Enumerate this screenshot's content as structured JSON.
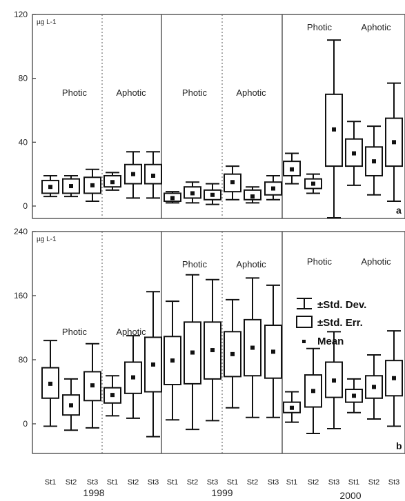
{
  "legend": {
    "sd": "±Std. Dev.",
    "se": "±Std. Err.",
    "mean": "Mean"
  },
  "x_labels": [
    "St1",
    "St2",
    "St3",
    "St1",
    "St2",
    "St3",
    "St1",
    "St2",
    "St3",
    "St1",
    "St2",
    "St3",
    "St1",
    "St2",
    "St3",
    "St1",
    "St2",
    "St3"
  ],
  "years": [
    "1998",
    "1999",
    "2000"
  ],
  "chart_data": [
    {
      "type": "box",
      "panel_letter": "a",
      "unit_label": "µg L-1",
      "ylim": [
        0,
        120
      ],
      "yticks": [
        "0",
        "40",
        "80",
        "120"
      ],
      "zone_labels": [
        "Photic",
        "Aphotic",
        "Photic",
        "Aphotic",
        "Photic",
        "Aphotic"
      ],
      "groups": [
        {
          "year": "1998",
          "zone": "Photic",
          "station": "St1",
          "mean": 12,
          "se_low": 8,
          "se_high": 16,
          "sd_low": 6,
          "sd_high": 19
        },
        {
          "year": "1998",
          "zone": "Photic",
          "station": "St2",
          "mean": 12.5,
          "se_low": 8,
          "se_high": 17,
          "sd_low": 6,
          "sd_high": 19
        },
        {
          "year": "1998",
          "zone": "Photic",
          "station": "St3",
          "mean": 13,
          "se_low": 8,
          "se_high": 18,
          "sd_low": 3,
          "sd_high": 23
        },
        {
          "year": "1998",
          "zone": "Aphotic",
          "station": "St1",
          "mean": 15,
          "se_low": 12,
          "se_high": 19,
          "sd_low": 10,
          "sd_high": 21
        },
        {
          "year": "1998",
          "zone": "Aphotic",
          "station": "St2",
          "mean": 20,
          "se_low": 14,
          "se_high": 26,
          "sd_low": 5,
          "sd_high": 34
        },
        {
          "year": "1998",
          "zone": "Aphotic",
          "station": "St3",
          "mean": 19,
          "se_low": 14,
          "se_high": 26,
          "sd_low": 5,
          "sd_high": 34
        },
        {
          "year": "1999",
          "zone": "Photic",
          "station": "St1",
          "mean": 5,
          "se_low": 3,
          "se_high": 8,
          "sd_low": 2,
          "sd_high": 9
        },
        {
          "year": "1999",
          "zone": "Photic",
          "station": "St2",
          "mean": 8,
          "se_low": 5,
          "se_high": 12,
          "sd_low": 2,
          "sd_high": 15
        },
        {
          "year": "1999",
          "zone": "Photic",
          "station": "St3",
          "mean": 7,
          "se_low": 4,
          "se_high": 10,
          "sd_low": 1,
          "sd_high": 14
        },
        {
          "year": "1999",
          "zone": "Aphotic",
          "station": "St1",
          "mean": 15,
          "se_low": 9,
          "se_high": 20,
          "sd_low": 4,
          "sd_high": 25
        },
        {
          "year": "1999",
          "zone": "Aphotic",
          "station": "St2",
          "mean": 6,
          "se_low": 4,
          "se_high": 10,
          "sd_low": 2,
          "sd_high": 12
        },
        {
          "year": "1999",
          "zone": "Aphotic",
          "station": "St3",
          "mean": 11,
          "se_low": 7,
          "se_high": 15,
          "sd_low": 4,
          "sd_high": 19
        },
        {
          "year": "2000",
          "zone": "Photic",
          "station": "St1",
          "mean": 23,
          "se_low": 19,
          "se_high": 28,
          "sd_low": 14,
          "sd_high": 33
        },
        {
          "year": "2000",
          "zone": "Photic",
          "station": "St2",
          "mean": 14,
          "se_low": 11,
          "se_high": 17,
          "sd_low": 8,
          "sd_high": 20
        },
        {
          "year": "2000",
          "zone": "Photic",
          "station": "St3",
          "mean": 48,
          "se_low": 25,
          "se_high": 70,
          "sd_low": -8,
          "sd_high": 104
        },
        {
          "year": "2000",
          "zone": "Aphotic",
          "station": "St1",
          "mean": 33,
          "se_low": 25,
          "se_high": 42,
          "sd_low": 13,
          "sd_high": 53
        },
        {
          "year": "2000",
          "zone": "Aphotic",
          "station": "St2",
          "mean": 28,
          "se_low": 19,
          "se_high": 37,
          "sd_low": 7,
          "sd_high": 50
        },
        {
          "year": "2000",
          "zone": "Aphotic",
          "station": "St3",
          "mean": 40,
          "se_low": 25,
          "se_high": 55,
          "sd_low": 3,
          "sd_high": 77
        }
      ]
    },
    {
      "type": "box",
      "panel_letter": "b",
      "unit_label": "µg L-1",
      "ylim": [
        0,
        240
      ],
      "yticks": [
        "0",
        "80",
        "160",
        "240"
      ],
      "zone_labels": [
        "Photic",
        "Aphotic",
        "Photic",
        "Aphotic",
        "Photic",
        "Aphotic"
      ],
      "groups": [
        {
          "year": "1998",
          "zone": "Photic",
          "station": "St1",
          "mean": 50,
          "se_low": 32,
          "se_high": 70,
          "sd_low": -3,
          "sd_high": 104
        },
        {
          "year": "1998",
          "zone": "Photic",
          "station": "St2",
          "mean": 23,
          "se_low": 11,
          "se_high": 36,
          "sd_low": -8,
          "sd_high": 56
        },
        {
          "year": "1998",
          "zone": "Photic",
          "station": "St3",
          "mean": 48,
          "se_low": 29,
          "se_high": 65,
          "sd_low": -5,
          "sd_high": 100
        },
        {
          "year": "1998",
          "zone": "Aphotic",
          "station": "St1",
          "mean": 36,
          "se_low": 26,
          "se_high": 45,
          "sd_low": 10,
          "sd_high": 60
        },
        {
          "year": "1998",
          "zone": "Aphotic",
          "station": "St2",
          "mean": 58,
          "se_low": 38,
          "se_high": 77,
          "sd_low": 7,
          "sd_high": 110
        },
        {
          "year": "1998",
          "zone": "Aphotic",
          "station": "St3",
          "mean": 74,
          "se_low": 40,
          "se_high": 108,
          "sd_low": -16,
          "sd_high": 165
        },
        {
          "year": "1999",
          "zone": "Photic",
          "station": "St1",
          "mean": 79,
          "se_low": 49,
          "se_high": 109,
          "sd_low": 5,
          "sd_high": 153
        },
        {
          "year": "1999",
          "zone": "Photic",
          "station": "St2",
          "mean": 89,
          "se_low": 50,
          "se_high": 127,
          "sd_low": -7,
          "sd_high": 186
        },
        {
          "year": "1999",
          "zone": "Photic",
          "station": "St3",
          "mean": 92,
          "se_low": 56,
          "se_high": 127,
          "sd_low": 4,
          "sd_high": 180
        },
        {
          "year": "1999",
          "zone": "Aphotic",
          "station": "St1",
          "mean": 87,
          "se_low": 59,
          "se_high": 115,
          "sd_low": 20,
          "sd_high": 155
        },
        {
          "year": "1999",
          "zone": "Aphotic",
          "station": "St2",
          "mean": 95,
          "se_low": 60,
          "se_high": 130,
          "sd_low": 8,
          "sd_high": 182
        },
        {
          "year": "1999",
          "zone": "Aphotic",
          "station": "St3",
          "mean": 90,
          "se_low": 57,
          "se_high": 123,
          "sd_low": 8,
          "sd_high": 173
        },
        {
          "year": "2000",
          "zone": "Photic",
          "station": "St1",
          "mean": 20,
          "se_low": 14,
          "se_high": 27,
          "sd_low": 2,
          "sd_high": 40
        },
        {
          "year": "2000",
          "zone": "Photic",
          "station": "St2",
          "mean": 41,
          "se_low": 21,
          "se_high": 61,
          "sd_low": -12,
          "sd_high": 94
        },
        {
          "year": "2000",
          "zone": "Photic",
          "station": "St3",
          "mean": 54,
          "se_low": 33,
          "se_high": 77,
          "sd_low": -6,
          "sd_high": 115
        },
        {
          "year": "2000",
          "zone": "Aphotic",
          "station": "St1",
          "mean": 35,
          "se_low": 27,
          "se_high": 43,
          "sd_low": 14,
          "sd_high": 56
        },
        {
          "year": "2000",
          "zone": "Aphotic",
          "station": "St2",
          "mean": 46,
          "se_low": 32,
          "se_high": 60,
          "sd_low": 6,
          "sd_high": 86
        },
        {
          "year": "2000",
          "zone": "Aphotic",
          "station": "St3",
          "mean": 57,
          "se_low": 35,
          "se_high": 79,
          "sd_low": -3,
          "sd_high": 116
        }
      ]
    }
  ]
}
